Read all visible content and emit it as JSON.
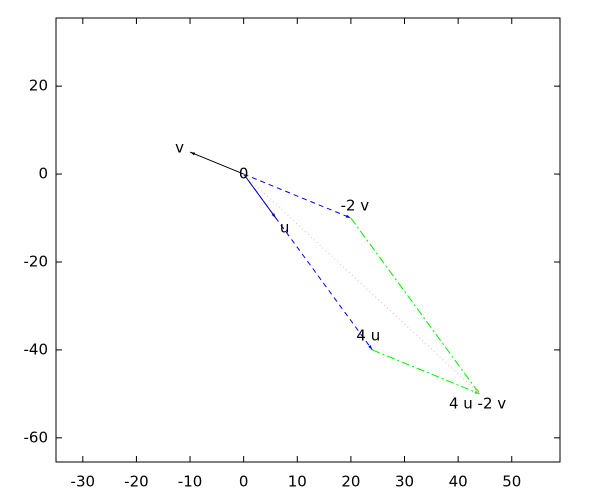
{
  "chart_data": {
    "type": "vector",
    "xlim": [
      -35,
      59
    ],
    "ylim": [
      -65.5,
      35.5
    ],
    "xticks": [
      -30,
      -20,
      -10,
      0,
      10,
      20,
      30,
      40,
      50
    ],
    "yticks": [
      -60,
      -40,
      -20,
      0,
      20
    ],
    "grid": false,
    "series": [
      {
        "x": [
          0,
          -10
        ],
        "y": [
          0,
          5
        ],
        "color": "#000000",
        "style": "solid"
      },
      {
        "x": [
          0,
          6
        ],
        "y": [
          0,
          -10
        ],
        "color": "#00007f",
        "style": "solid"
      },
      {
        "x": [
          0,
          20
        ],
        "y": [
          0,
          -10
        ],
        "color": "#0000ff",
        "style": "dashed"
      },
      {
        "x": [
          0,
          24
        ],
        "y": [
          0,
          -40
        ],
        "color": "#0000ff",
        "style": "dashed"
      },
      {
        "x": [
          20,
          44
        ],
        "y": [
          -10,
          -50
        ],
        "color": "#00ee00",
        "style": "dashdot"
      },
      {
        "x": [
          24,
          44
        ],
        "y": [
          -40,
          -50
        ],
        "color": "#00ee00",
        "style": "dashdot"
      },
      {
        "x": [
          0,
          44
        ],
        "y": [
          0,
          -50
        ],
        "color": "#ffb0b0",
        "style": "dotted"
      }
    ],
    "labels": [
      {
        "text": "0",
        "x": 0,
        "y": 0
      },
      {
        "text": "u",
        "x": 6,
        "y": -10
      },
      {
        "text": "v",
        "x": -10,
        "y": 5
      },
      {
        "text": "-2 v",
        "x": 20,
        "y": -10
      },
      {
        "text": "4 u",
        "x": 24,
        "y": -40
      },
      {
        "text": "4 u -2 v",
        "x": 44,
        "y": -50
      }
    ]
  }
}
